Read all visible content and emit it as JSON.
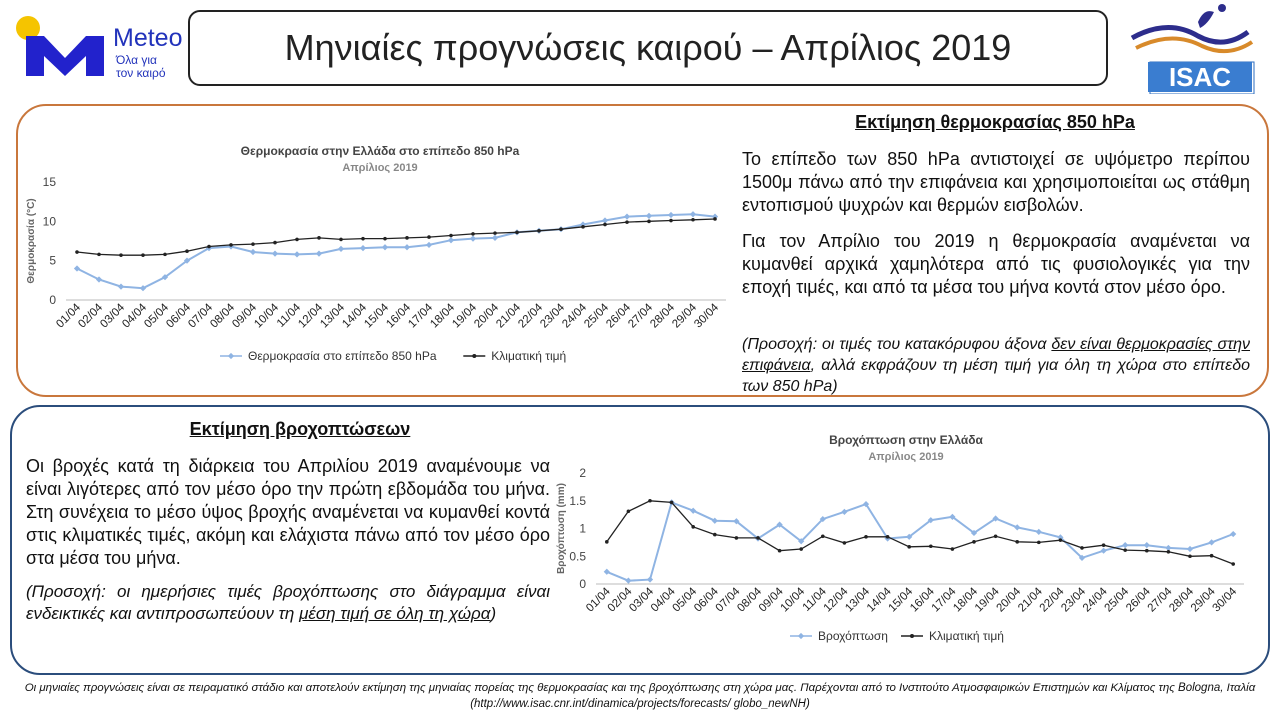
{
  "header": {
    "title": "Μηνιαίες προγνώσεις καιρού – Απρίλιος 2019",
    "meteo_logo": {
      "letter": "M",
      "name": "Meteo",
      "tagline_1": "Όλα για",
      "tagline_2": "τον καιρό"
    },
    "isac_logo": {
      "text": "ISAC"
    }
  },
  "temperature_section": {
    "heading": "Εκτίμηση θερμοκρασίας 850 hPa",
    "paragraph_1": "Το επίπεδο των 850 hPa αντιστοιχεί σε υψόμετρο περίπου 1500μ πάνω από την επιφάνεια και χρησιμοποιείται ως στάθμη εντοπισμού ψυχρών και θερμών εισβολών.",
    "paragraph_2": "Για τον Απρίλιο του 2019 η θερμοκρασία αναμένεται να κυμανθεί αρχικά χαμηλότερα από τις φυσιολογικές για την εποχή τιμές, και από τα μέσα του μήνα κοντά στον μέσο όρο.",
    "note_prefix": "(Προσοχή: οι τιμές του κατακόρυφου άξονα ",
    "note_underlined": "δεν είναι θερμοκρασίες στην επιφάνεια",
    "note_suffix": ", αλλά εκφράζουν τη μέση τιμή για όλη τη χώρα στο επίπεδο των 850 hPa)"
  },
  "rain_section": {
    "heading": "Εκτίμηση βροχοπτώσεων",
    "paragraph_1": "Οι βροχές κατά τη διάρκεια του Απριλίου 2019 αναμένουμε να είναι λιγότερες από τον μέσο όρο την πρώτη εβδομάδα του μήνα. Στη συνέχεια το μέσο ύψος βροχής αναμένεται να κυμανθεί κοντά στις κλιματικές τιμές, ακόμη και ελάχιστα πάνω από τον μέσο όρο στα μέσα του μήνα.",
    "note_prefix": "(Προσοχή: οι ημερήσιες τιμές βροχόπτωσης στο διάγραμμα είναι ενδεικτικές και αντιπροσωπεύουν τη ",
    "note_underlined": "μέση τιμή σε όλη τη χώρα",
    "note_suffix": ")"
  },
  "footer": {
    "text": "Οι μηνιαίες προγνώσεις είναι σε πειραματικό στάδιο και αποτελούν εκτίμηση της μηνιαίας πορείας της θερμοκρασίας και της βροχόπτωσης στη χώρα μας. Παρέχονται από το Ινστιτούτο Ατμοσφαιρικών Επιστημών και Κλίματος της Bologna, Ιταλία (http://www.isac.cnr.int/dinamica/projects/forecasts/ globo_newNH)"
  },
  "colors": {
    "forecast_series": "#8fb4e3",
    "climate_series": "#222222",
    "temp_panel_border": "#c9773c",
    "rain_panel_border": "#2b4d7c",
    "meteo_blue": "#2222cc",
    "meteo_yellow": "#f5c400"
  },
  "chart_data": [
    {
      "type": "line",
      "title": "Θερμοκρασία στην Ελλάδα στο επίπεδο 850 hPa",
      "subtitle": "Απρίλιος 2019",
      "xlabel": "",
      "ylabel": "Θερμοκρασία (°C)",
      "ylim": [
        0,
        15
      ],
      "yticks": [
        0,
        5,
        10,
        15
      ],
      "grid": false,
      "legend": "bottom",
      "categories": [
        "01/04",
        "02/04",
        "03/04",
        "04/04",
        "05/04",
        "06/04",
        "07/04",
        "08/04",
        "09/04",
        "10/04",
        "11/04",
        "12/04",
        "13/04",
        "14/04",
        "15/04",
        "16/04",
        "17/04",
        "18/04",
        "19/04",
        "20/04",
        "21/04",
        "22/04",
        "23/04",
        "24/04",
        "25/04",
        "26/04",
        "27/04",
        "28/04",
        "29/04",
        "30/04"
      ],
      "series": [
        {
          "name": "Θερμοκρασία στο επίπεδο 850 hPa",
          "color": "#8fb4e3",
          "values": [
            4.0,
            2.6,
            1.7,
            1.5,
            2.9,
            5.0,
            6.6,
            6.8,
            6.1,
            5.9,
            5.8,
            5.9,
            6.5,
            6.6,
            6.7,
            6.7,
            7.0,
            7.6,
            7.8,
            7.9,
            8.6,
            8.8,
            9.0,
            9.6,
            10.1,
            10.6,
            10.7,
            10.8,
            10.9,
            10.6
          ]
        },
        {
          "name": "Κλιματική τιμή",
          "color": "#222222",
          "values": [
            6.1,
            5.8,
            5.7,
            5.7,
            5.8,
            6.2,
            6.8,
            7.0,
            7.1,
            7.3,
            7.7,
            7.9,
            7.7,
            7.8,
            7.8,
            7.9,
            8.0,
            8.2,
            8.4,
            8.5,
            8.6,
            8.8,
            9.0,
            9.3,
            9.6,
            9.9,
            10.0,
            10.1,
            10.2,
            10.3
          ]
        }
      ]
    },
    {
      "type": "line",
      "title": "Βροχόπτωση στην Ελλάδα",
      "subtitle": "Απρίλιος 2019",
      "xlabel": "",
      "ylabel": "Βροχόπτωση (mm)",
      "ylim": [
        0,
        2
      ],
      "yticks": [
        0,
        0.5,
        1,
        1.5,
        2
      ],
      "grid": false,
      "legend": "bottom",
      "categories": [
        "01/04",
        "02/04",
        "03/04",
        "04/04",
        "05/04",
        "06/04",
        "07/04",
        "08/04",
        "09/04",
        "10/04",
        "11/04",
        "12/04",
        "13/04",
        "14/04",
        "15/04",
        "16/04",
        "17/04",
        "18/04",
        "19/04",
        "20/04",
        "21/04",
        "22/04",
        "23/04",
        "24/04",
        "25/04",
        "26/04",
        "27/04",
        "28/04",
        "29/04",
        "30/04"
      ],
      "series": [
        {
          "name": "Βροχόπτωση",
          "color": "#8fb4e3",
          "values": [
            0.22,
            0.06,
            0.08,
            1.47,
            1.32,
            1.14,
            1.13,
            0.82,
            1.07,
            0.77,
            1.17,
            1.3,
            1.44,
            0.82,
            0.85,
            1.15,
            1.21,
            0.92,
            1.18,
            1.02,
            0.94,
            0.84,
            0.47,
            0.6,
            0.7,
            0.7,
            0.65,
            0.63,
            0.75,
            0.9
          ]
        },
        {
          "name": "Κλιματική τιμή",
          "color": "#222222",
          "values": [
            0.76,
            1.31,
            1.5,
            1.47,
            1.03,
            0.89,
            0.83,
            0.83,
            0.6,
            0.63,
            0.86,
            0.74,
            0.85,
            0.85,
            0.67,
            0.68,
            0.63,
            0.76,
            0.86,
            0.76,
            0.75,
            0.79,
            0.65,
            0.7,
            0.61,
            0.6,
            0.58,
            0.5,
            0.51,
            0.36
          ]
        }
      ]
    }
  ]
}
